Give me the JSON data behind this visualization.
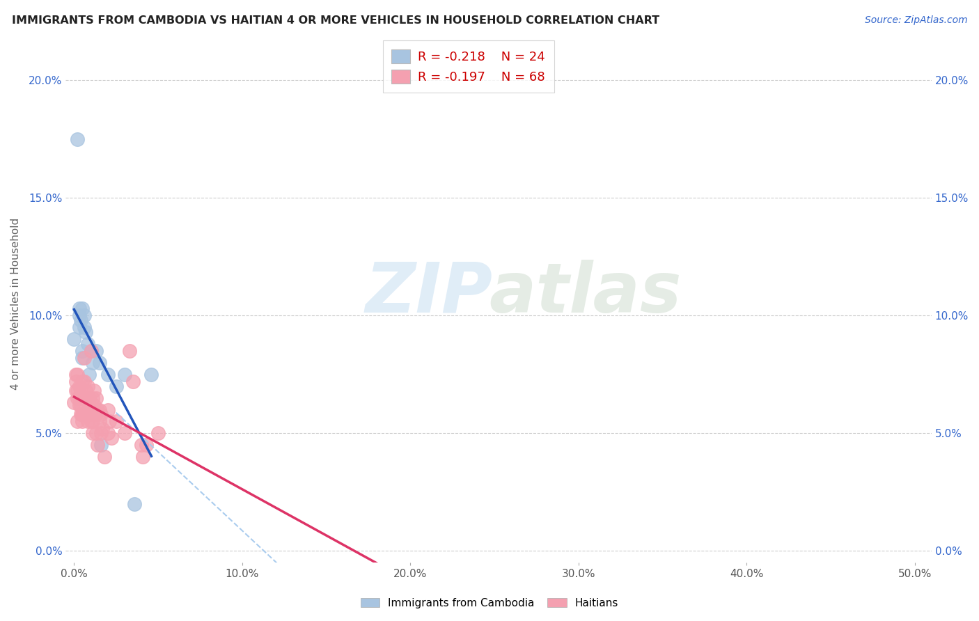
{
  "title": "IMMIGRANTS FROM CAMBODIA VS HAITIAN 4 OR MORE VEHICLES IN HOUSEHOLD CORRELATION CHART",
  "source": "Source: ZipAtlas.com",
  "ylabel": "4 or more Vehicles in Household",
  "legend_entries": [
    {
      "label_r": "R = -0.218",
      "label_n": "N = 24",
      "color": "#a8c4e0"
    },
    {
      "label_r": "R = -0.197",
      "label_n": "N = 68",
      "color": "#f4a0b0"
    }
  ],
  "cambodia_label": "Immigrants from Cambodia",
  "haitian_label": "Haitians",
  "cambodia_color": "#a8c4e0",
  "haitian_color": "#f4a0b0",
  "trend_cambodia_color": "#2255bb",
  "trend_haitian_color": "#dd3366",
  "trend_combined_color": "#aaccee",
  "cambodia_points_pct": [
    [
      0.0,
      9.0
    ],
    [
      0.2,
      17.5
    ],
    [
      0.3,
      10.0
    ],
    [
      0.3,
      10.3
    ],
    [
      0.3,
      9.5
    ],
    [
      0.4,
      9.8
    ],
    [
      0.5,
      8.5
    ],
    [
      0.5,
      8.2
    ],
    [
      0.5,
      10.3
    ],
    [
      0.6,
      10.0
    ],
    [
      0.6,
      9.5
    ],
    [
      0.7,
      9.3
    ],
    [
      0.8,
      8.8
    ],
    [
      0.9,
      7.5
    ],
    [
      1.0,
      8.5
    ],
    [
      1.1,
      8.0
    ],
    [
      1.3,
      8.5
    ],
    [
      1.5,
      8.0
    ],
    [
      1.6,
      4.5
    ],
    [
      2.0,
      7.5
    ],
    [
      2.5,
      7.0
    ],
    [
      3.0,
      7.5
    ],
    [
      3.6,
      2.0
    ],
    [
      4.6,
      7.5
    ]
  ],
  "haitian_points_pct": [
    [
      0.0,
      6.3
    ],
    [
      0.1,
      7.5
    ],
    [
      0.1,
      6.8
    ],
    [
      0.1,
      7.2
    ],
    [
      0.2,
      6.5
    ],
    [
      0.2,
      7.5
    ],
    [
      0.2,
      6.8
    ],
    [
      0.2,
      5.5
    ],
    [
      0.3,
      7.0
    ],
    [
      0.3,
      6.5
    ],
    [
      0.3,
      6.2
    ],
    [
      0.3,
      6.5
    ],
    [
      0.4,
      6.5
    ],
    [
      0.4,
      6.2
    ],
    [
      0.4,
      5.8
    ],
    [
      0.4,
      6.8
    ],
    [
      0.5,
      5.8
    ],
    [
      0.5,
      5.5
    ],
    [
      0.5,
      5.8
    ],
    [
      0.5,
      7.2
    ],
    [
      0.6,
      7.2
    ],
    [
      0.6,
      6.5
    ],
    [
      0.6,
      5.8
    ],
    [
      0.6,
      8.2
    ],
    [
      0.7,
      5.8
    ],
    [
      0.7,
      6.5
    ],
    [
      0.7,
      5.8
    ],
    [
      0.7,
      6.8
    ],
    [
      0.8,
      6.5
    ],
    [
      0.8,
      5.5
    ],
    [
      0.8,
      6.0
    ],
    [
      0.8,
      7.0
    ],
    [
      0.9,
      6.0
    ],
    [
      0.9,
      6.2
    ],
    [
      0.9,
      6.5
    ],
    [
      0.9,
      5.8
    ],
    [
      1.0,
      5.5
    ],
    [
      1.0,
      8.5
    ],
    [
      1.0,
      6.0
    ],
    [
      1.1,
      5.5
    ],
    [
      1.1,
      6.5
    ],
    [
      1.1,
      5.0
    ],
    [
      1.2,
      6.0
    ],
    [
      1.2,
      6.2
    ],
    [
      1.2,
      6.8
    ],
    [
      1.3,
      5.8
    ],
    [
      1.3,
      5.0
    ],
    [
      1.3,
      6.5
    ],
    [
      1.4,
      6.0
    ],
    [
      1.4,
      4.5
    ],
    [
      1.5,
      5.5
    ],
    [
      1.5,
      6.0
    ],
    [
      1.6,
      5.8
    ],
    [
      1.6,
      5.0
    ],
    [
      1.7,
      5.2
    ],
    [
      1.8,
      4.0
    ],
    [
      2.0,
      6.0
    ],
    [
      2.0,
      5.0
    ],
    [
      2.1,
      5.5
    ],
    [
      2.2,
      4.8
    ],
    [
      2.5,
      5.5
    ],
    [
      3.0,
      5.0
    ],
    [
      3.3,
      8.5
    ],
    [
      3.5,
      7.2
    ],
    [
      4.0,
      4.5
    ],
    [
      4.1,
      4.0
    ],
    [
      4.3,
      4.5
    ],
    [
      5.0,
      5.0
    ]
  ],
  "xlim": [
    0,
    50
  ],
  "ylim": [
    0,
    21
  ],
  "xtick_vals": [
    0,
    10,
    20,
    30,
    40,
    50
  ],
  "ytick_vals": [
    0,
    5,
    10,
    15,
    20
  ]
}
